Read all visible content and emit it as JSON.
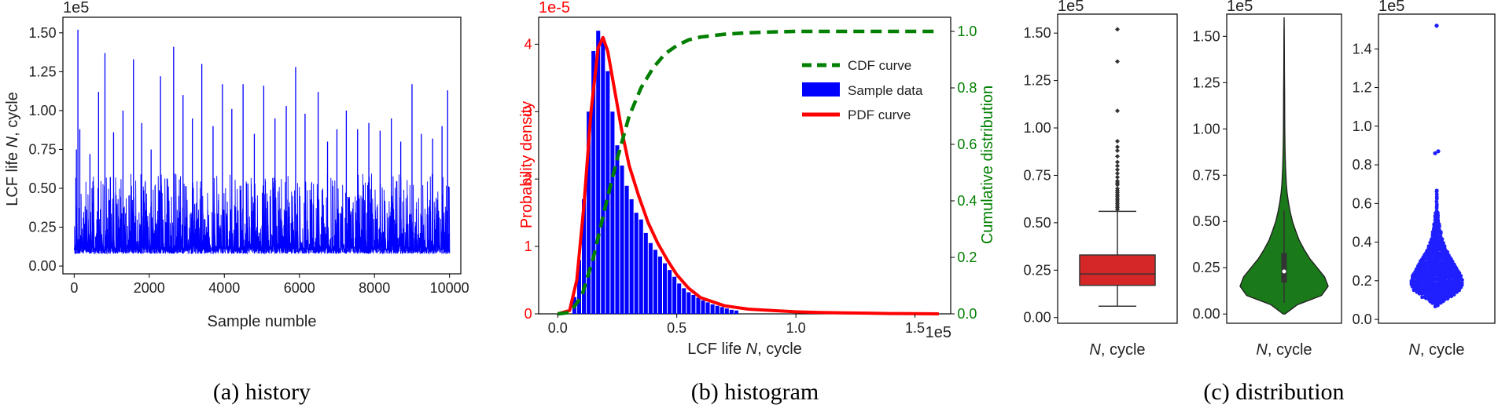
{
  "chart_data": [
    {
      "id": "history",
      "type": "line",
      "caption": "(a) history",
      "xlabel": "Sample numble",
      "ylabel_prefix": "LCF life ",
      "ylabel_italic": "N",
      "ylabel_suffix": ", cycle",
      "y_scale_label": "1e5",
      "xlim": [
        -300,
        10300
      ],
      "ylim": [
        -0.05,
        1.6
      ],
      "xticks": [
        0,
        2000,
        4000,
        6000,
        8000,
        10000
      ],
      "xtick_labels": [
        "0",
        "2000",
        "4000",
        "6000",
        "8000",
        "10000"
      ],
      "yticks": [
        0.0,
        0.25,
        0.5,
        0.75,
        1.0,
        1.25,
        1.5
      ],
      "ytick_labels": [
        "0.00",
        "0.25",
        "0.50",
        "0.75",
        "1.00",
        "1.25",
        "1.50"
      ],
      "line_color": "#0000ff",
      "n_samples": 10000,
      "baseline_band": [
        0.08,
        0.55
      ],
      "peaks": [
        {
          "x": 60,
          "y": 0.75
        },
        {
          "x": 100,
          "y": 1.52
        },
        {
          "x": 150,
          "y": 0.88
        },
        {
          "x": 420,
          "y": 0.72
        },
        {
          "x": 650,
          "y": 1.12
        },
        {
          "x": 820,
          "y": 1.37
        },
        {
          "x": 1050,
          "y": 0.86
        },
        {
          "x": 1300,
          "y": 1.0
        },
        {
          "x": 1580,
          "y": 1.33
        },
        {
          "x": 1800,
          "y": 0.92
        },
        {
          "x": 2050,
          "y": 0.75
        },
        {
          "x": 2300,
          "y": 1.22
        },
        {
          "x": 2650,
          "y": 1.41
        },
        {
          "x": 2900,
          "y": 1.1
        },
        {
          "x": 3150,
          "y": 0.95
        },
        {
          "x": 3400,
          "y": 1.3
        },
        {
          "x": 3700,
          "y": 0.9
        },
        {
          "x": 3950,
          "y": 1.17
        },
        {
          "x": 4200,
          "y": 1.01
        },
        {
          "x": 4500,
          "y": 1.17
        },
        {
          "x": 4800,
          "y": 0.85
        },
        {
          "x": 5050,
          "y": 1.16
        },
        {
          "x": 5350,
          "y": 0.95
        },
        {
          "x": 5650,
          "y": 1.03
        },
        {
          "x": 5900,
          "y": 1.28
        },
        {
          "x": 6150,
          "y": 0.98
        },
        {
          "x": 6500,
          "y": 1.12
        },
        {
          "x": 6750,
          "y": 0.8
        },
        {
          "x": 7000,
          "y": 0.88
        },
        {
          "x": 7250,
          "y": 1.0
        },
        {
          "x": 7550,
          "y": 0.88
        },
        {
          "x": 7850,
          "y": 0.92
        },
        {
          "x": 8150,
          "y": 0.87
        },
        {
          "x": 8450,
          "y": 0.95
        },
        {
          "x": 8700,
          "y": 0.8
        },
        {
          "x": 9000,
          "y": 1.17
        },
        {
          "x": 9250,
          "y": 0.85
        },
        {
          "x": 9550,
          "y": 0.82
        },
        {
          "x": 9800,
          "y": 0.9
        },
        {
          "x": 9950,
          "y": 1.13
        }
      ]
    },
    {
      "id": "histogram",
      "type": "bar",
      "caption": "(b) histogram",
      "xlabel_prefix": "LCF life ",
      "xlabel_italic": "N",
      "xlabel_suffix": ", cycle",
      "x_scale_label": "1e5",
      "ylabel_left": "Probability density",
      "y_scale_label_left": "1e-5",
      "ylabel_right": "Cumulative distribution",
      "xlim": [
        -0.08,
        1.65
      ],
      "ylim_left": [
        0,
        4.4
      ],
      "ylim_right": [
        0,
        1.05
      ],
      "xticks": [
        0.0,
        0.5,
        1.0,
        1.5
      ],
      "xtick_labels": [
        "0.0",
        "0.5",
        "1.0",
        "1.5"
      ],
      "yticks_left": [
        0,
        1,
        2,
        3,
        4
      ],
      "ytick_labels_left": [
        "0",
        "1",
        "2",
        "3",
        "4"
      ],
      "yticks_right": [
        0.0,
        0.2,
        0.4,
        0.6,
        0.8,
        1.0
      ],
      "ytick_labels_right": [
        "0.0",
        "0.2",
        "0.4",
        "0.6",
        "0.8",
        "1.0"
      ],
      "colors": {
        "bars": "#0000ff",
        "pdf": "#ff0000",
        "cdf": "#007f00",
        "left_axis": "#ff0000",
        "right_axis": "#007f00"
      },
      "legend": [
        {
          "key": "cdf",
          "label": "CDF curve"
        },
        {
          "key": "bars",
          "label": "Sample data"
        },
        {
          "key": "pdf",
          "label": "PDF curve"
        }
      ],
      "legend_position": "center-right",
      "bin_width": 0.02,
      "bar_centers": [
        0.07,
        0.09,
        0.11,
        0.13,
        0.15,
        0.17,
        0.19,
        0.21,
        0.23,
        0.25,
        0.27,
        0.29,
        0.31,
        0.33,
        0.35,
        0.37,
        0.39,
        0.41,
        0.43,
        0.45,
        0.47,
        0.49,
        0.51,
        0.53,
        0.55,
        0.57,
        0.59,
        0.61,
        0.63,
        0.65,
        0.67,
        0.69,
        0.71,
        0.73,
        0.75
      ],
      "bar_values": [
        0.25,
        0.8,
        1.7,
        3.0,
        3.9,
        4.2,
        4.1,
        3.6,
        3.0,
        2.5,
        2.2,
        1.9,
        1.7,
        1.5,
        1.4,
        1.2,
        1.05,
        0.95,
        0.85,
        0.75,
        0.65,
        0.55,
        0.45,
        0.38,
        0.32,
        0.28,
        0.24,
        0.2,
        0.17,
        0.14,
        0.12,
        0.1,
        0.08,
        0.06,
        0.05
      ],
      "pdf_x": [
        0.0,
        0.05,
        0.08,
        0.11,
        0.14,
        0.17,
        0.19,
        0.21,
        0.24,
        0.27,
        0.3,
        0.34,
        0.38,
        0.42,
        0.46,
        0.5,
        0.55,
        0.6,
        0.7,
        0.8,
        0.9,
        1.0,
        1.1,
        1.2,
        1.3,
        1.4,
        1.5,
        1.6
      ],
      "pdf_y": [
        0.0,
        0.05,
        0.5,
        1.6,
        3.0,
        3.95,
        4.1,
        3.9,
        3.3,
        2.7,
        2.2,
        1.75,
        1.35,
        1.05,
        0.8,
        0.58,
        0.38,
        0.24,
        0.12,
        0.07,
        0.05,
        0.03,
        0.02,
        0.015,
        0.01,
        0.005,
        0.002,
        0.0
      ],
      "cdf_x": [
        0.0,
        0.05,
        0.1,
        0.15,
        0.2,
        0.25,
        0.3,
        0.35,
        0.4,
        0.45,
        0.5,
        0.55,
        0.6,
        0.7,
        0.8,
        0.9,
        1.0,
        1.2,
        1.4,
        1.6
      ],
      "cdf_y": [
        0.0,
        0.005,
        0.06,
        0.2,
        0.38,
        0.55,
        0.7,
        0.8,
        0.87,
        0.92,
        0.95,
        0.97,
        0.98,
        0.99,
        0.995,
        0.998,
        1.0,
        1.0,
        1.0,
        1.0
      ]
    },
    {
      "id": "boxplot",
      "type": "box",
      "caption": "(c) distribution",
      "xlabel_italic": "N",
      "xlabel_suffix": ", cycle",
      "y_scale_label": "1e5",
      "ylim": [
        -0.03,
        1.6
      ],
      "yticks": [
        0.0,
        0.25,
        0.5,
        0.75,
        1.0,
        1.25,
        1.5
      ],
      "ytick_labels": [
        "0.00",
        "0.25",
        "0.50",
        "0.75",
        "1.00",
        "1.25",
        "1.50"
      ],
      "color": "#d62728",
      "whisker_low": 0.06,
      "q1": 0.17,
      "median": 0.23,
      "q3": 0.33,
      "whisker_high": 0.56,
      "outliers": [
        0.57,
        0.58,
        0.59,
        0.6,
        0.61,
        0.62,
        0.63,
        0.64,
        0.65,
        0.66,
        0.67,
        0.68,
        0.7,
        0.71,
        0.72,
        0.74,
        0.76,
        0.78,
        0.8,
        0.82,
        0.85,
        0.88,
        0.9,
        0.93,
        1.09,
        1.35,
        1.52
      ]
    },
    {
      "id": "violin",
      "type": "violin",
      "xlabel_italic": "N",
      "xlabel_suffix": ", cycle",
      "y_scale_label": "1e5",
      "ylim": [
        -0.05,
        1.62
      ],
      "yticks": [
        0.0,
        0.25,
        0.5,
        0.75,
        1.0,
        1.25,
        1.5
      ],
      "ytick_labels": [
        "0.00",
        "0.25",
        "0.50",
        "0.75",
        "1.00",
        "1.25",
        "1.50"
      ],
      "color": "#1a7a1a",
      "y_profile": [
        0.0,
        0.05,
        0.1,
        0.15,
        0.2,
        0.25,
        0.3,
        0.35,
        0.4,
        0.45,
        0.5,
        0.55,
        0.6,
        0.65,
        0.7,
        0.8,
        0.9,
        1.0,
        1.1,
        1.2,
        1.3,
        1.4,
        1.5,
        1.6
      ],
      "density_profile": [
        0.02,
        0.3,
        0.85,
        1.0,
        0.92,
        0.75,
        0.58,
        0.45,
        0.34,
        0.26,
        0.19,
        0.14,
        0.1,
        0.07,
        0.05,
        0.03,
        0.02,
        0.015,
        0.012,
        0.01,
        0.008,
        0.006,
        0.004,
        0.0
      ],
      "q1": 0.17,
      "median": 0.23,
      "q3": 0.33
    },
    {
      "id": "swarm",
      "type": "scatter",
      "xlabel_italic": "N",
      "xlabel_suffix": ", cycle",
      "y_scale_label": "1e5",
      "ylim": [
        -0.02,
        1.58
      ],
      "yticks": [
        0.0,
        0.2,
        0.4,
        0.6,
        0.8,
        1.0,
        1.2,
        1.4
      ],
      "ytick_labels": [
        "0.0",
        "0.2",
        "0.4",
        "0.6",
        "0.8",
        "1.0",
        "1.2",
        "1.4"
      ],
      "color": "#1f1fff",
      "n_points": 520,
      "extreme_points": [
        0.86,
        0.87,
        1.52
      ]
    }
  ]
}
